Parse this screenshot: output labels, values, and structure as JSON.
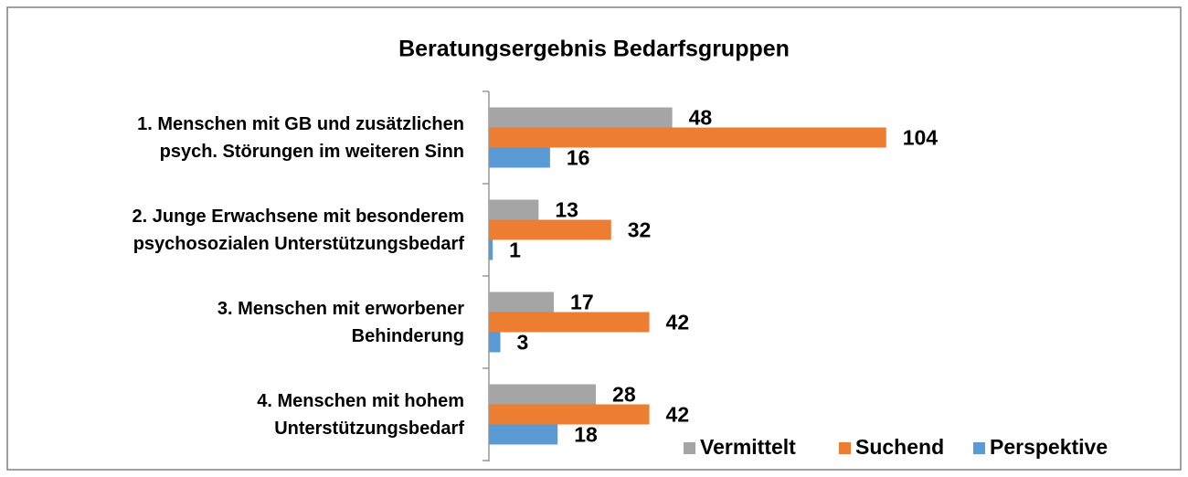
{
  "chart_data": {
    "type": "bar",
    "orientation": "horizontal",
    "title": "Beratungsergebnis Bedarfsgruppen",
    "categories": [
      "1. Menschen mit GB und zusätzlichen\npsych. Störungen im weiteren Sinn",
      "2. Junge Erwachsene mit besonderem\npsychosozialen Unterstützungsbedarf",
      "3. Menschen mit erworbener\nBehinderung",
      "4. Menschen mit hohem\nUnterstützungsbedarf"
    ],
    "series": [
      {
        "name": "Vermittelt",
        "color": "#a5a5a5",
        "values": [
          48,
          13,
          17,
          28
        ]
      },
      {
        "name": "Suchend",
        "color": "#ed7d31",
        "values": [
          104,
          32,
          42,
          42
        ]
      },
      {
        "name": "Perspektive",
        "color": "#5b9bd5",
        "values": [
          16,
          1,
          3,
          18
        ]
      }
    ],
    "legend": "bottom-right"
  }
}
